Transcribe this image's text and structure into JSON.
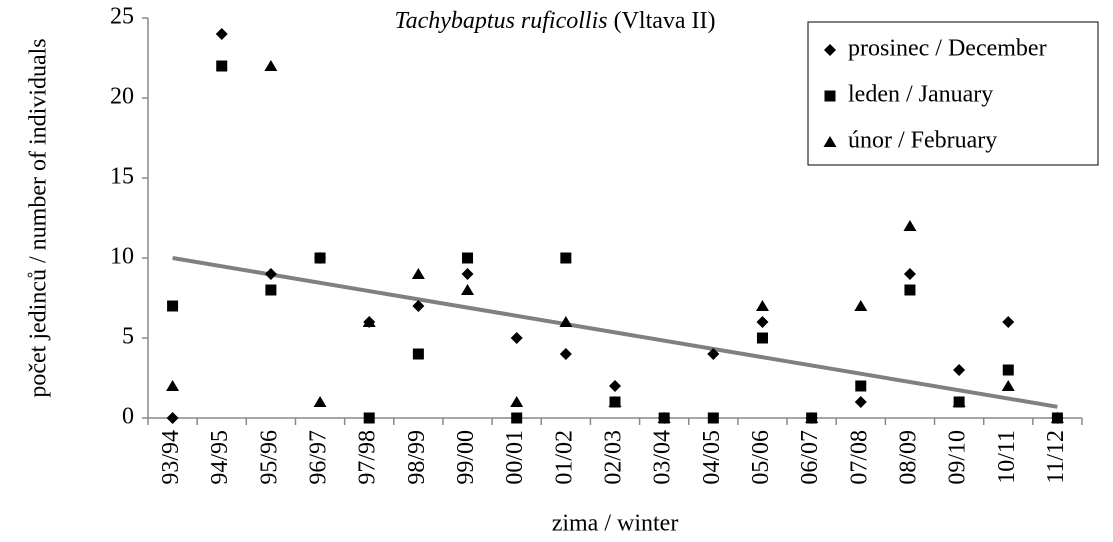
{
  "chart_data": {
    "type": "scatter",
    "title": [
      "Tachybaptus ruficollis",
      "(Vltava II)"
    ],
    "xlabel": "zima / winter",
    "ylabel": "počet jedinců / number of individuals",
    "categories": [
      "93/94",
      "94/95",
      "95/96",
      "96/97",
      "97/98",
      "98/99",
      "99/00",
      "00/01",
      "01/02",
      "02/03",
      "03/04",
      "04/05",
      "05/06",
      "06/07",
      "07/08",
      "08/09",
      "09/10",
      "10/11",
      "11/12"
    ],
    "ylim": [
      0,
      25
    ],
    "yticks": [
      0,
      5,
      10,
      15,
      20,
      25
    ],
    "grid": false,
    "legend": "top-right",
    "series": [
      {
        "name": "prosinec / December",
        "marker": "diamond",
        "color": "#000000",
        "values": [
          0,
          24,
          9,
          10,
          6,
          7,
          9,
          5,
          4,
          2,
          0,
          4,
          6,
          0,
          1,
          9,
          3,
          6,
          0
        ]
      },
      {
        "name": "leden / January",
        "marker": "square",
        "color": "#000000",
        "values": [
          7,
          22,
          8,
          10,
          0,
          4,
          10,
          0,
          10,
          1,
          0,
          0,
          5,
          0,
          2,
          8,
          1,
          3,
          0
        ]
      },
      {
        "name": "únor / February",
        "marker": "triangle",
        "color": "#000000",
        "values": [
          2,
          null,
          22,
          1,
          6,
          9,
          8,
          1,
          6,
          1,
          0,
          null,
          7,
          0,
          7,
          12,
          1,
          2,
          0
        ]
      }
    ],
    "trendline": {
      "values": [
        10,
        0.7
      ],
      "color": "#808080"
    }
  }
}
